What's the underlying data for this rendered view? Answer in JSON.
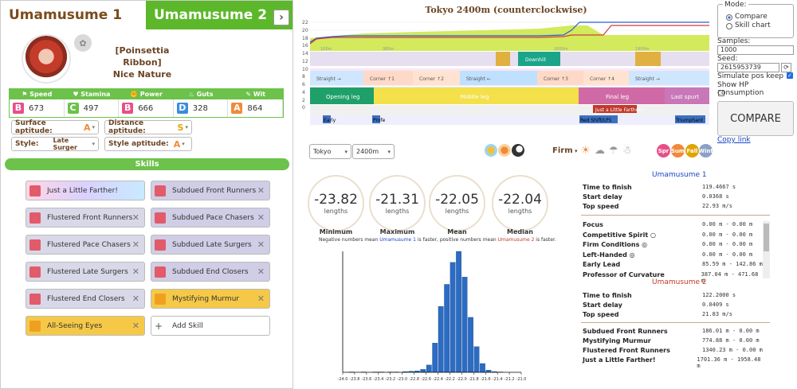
{
  "tabs": {
    "uma1": "Umamusume 1",
    "uma2": "Umamusume 2",
    "next": "›"
  },
  "uma": {
    "outfit": "[Poinsettia Ribbon]",
    "name": "Nice Nature"
  },
  "stats": [
    {
      "label": "Speed",
      "grade": "B",
      "value": "673"
    },
    {
      "label": "Stamina",
      "grade": "C",
      "value": "497"
    },
    {
      "label": "Power",
      "grade": "B",
      "value": "666"
    },
    {
      "label": "Guts",
      "grade": "D",
      "value": "328"
    },
    {
      "label": "Wit",
      "grade": "A",
      "value": "864"
    }
  ],
  "aptitudes": {
    "surface": {
      "label": "Surface aptitude:",
      "grade": "A"
    },
    "distance": {
      "label": "Distance aptitude:",
      "grade": "S"
    },
    "style": {
      "label": "Style:",
      "value": "Late Surger"
    },
    "style_apt": {
      "label": "Style aptitude:",
      "grade": "A"
    }
  },
  "skills_header": "Skills",
  "skills": [
    "Just a Little Farther!",
    "Subdued Front Runners",
    "Flustered Front Runners",
    "Subdued Pace Chasers",
    "Flustered Pace Chasers",
    "Subdued Late Surgers",
    "Flustered Late Surgers",
    "Subdued End Closers",
    "Flustered End Closers",
    "Mystifying Murmur",
    "All-Seeing Eyes",
    "Add Skill"
  ],
  "controls": {
    "mode_title": "Mode:",
    "mode_compare": "Compare",
    "mode_skill": "Skill chart",
    "samples_label": "Samples:",
    "samples_value": "1000",
    "seed_label": "Seed:",
    "seed_value": "2615953739",
    "sim_pos": "Simulate pos keep",
    "show_hp": "Show HP consumption",
    "compare_btn": "COMPARE",
    "copy_link": "Copy link"
  },
  "course": {
    "title": "Tokyo 2400m (counterclockwise)",
    "y_ticks": [
      "22",
      "20",
      "18",
      "16",
      "14",
      "12",
      "10",
      "8",
      "6",
      "4",
      "2",
      "0"
    ],
    "x_ticks": [
      "0",
      "200",
      "400",
      "600",
      "800",
      "1,000",
      "1,200",
      "1,400",
      "1,600",
      "1,800",
      "2,000",
      "2,200",
      "2,4"
    ],
    "straight_corner": [
      "Straight →",
      "Corner ↑1",
      "Corner ↑2",
      "Straight ←",
      "Corner ↑3",
      "Corner ↑4",
      "Straight →"
    ],
    "phases": [
      "Opening leg",
      "Middle leg",
      "Final leg",
      "Last spurt"
    ],
    "skill_marks": [
      "Just a Little Farther!",
      "Downhill"
    ],
    "track_labels": [
      "Early",
      "Profe",
      "Red Shift/LP1",
      "Triumphant"
    ],
    "dist_marks": [
      "100m",
      "380m",
      "1600m",
      "1900m"
    ]
  },
  "selectors": {
    "track": "Tokyo",
    "distance": "2400m",
    "ground": "Firm"
  },
  "seasons": [
    "Spr",
    "Sum",
    "Fall",
    "Wint"
  ],
  "stats_summary": {
    "min": {
      "value": "-23.82",
      "unit": "lengths",
      "label": "Minimum"
    },
    "max": {
      "value": "-21.31",
      "unit": "lengths",
      "label": "Maximum"
    },
    "mean": {
      "value": "-22.05",
      "unit": "lengths",
      "label": "Mean"
    },
    "median": {
      "value": "-22.04",
      "unit": "lengths",
      "label": "Median"
    }
  },
  "note": {
    "a": "Negative numbers mean ",
    "u1": "Umamusume 1",
    "b": " is faster, positive numbers mean ",
    "u2": "Umamusume 2",
    "c": " is faster."
  },
  "chart_data": {
    "type": "bar",
    "categories": [
      "-24.0",
      "-23.8",
      "-23.6",
      "-23.4",
      "-23.2",
      "-23.0",
      "-22.8",
      "-22.6",
      "-22.4",
      "-22.2",
      "-22.0",
      "-21.8",
      "-21.6",
      "-21.4",
      "-21.2",
      "-21.0"
    ],
    "x": [
      -23.85,
      -23.65,
      -23.45,
      -23.35,
      -23.2,
      -23.1,
      -22.95,
      -22.85,
      -22.75,
      -22.65,
      -22.55,
      -22.45,
      -22.35,
      -22.25,
      -22.15,
      -22.05,
      -21.95,
      -21.85,
      -21.75,
      -21.65,
      -21.55,
      -21.45,
      -21.35
    ],
    "values": [
      0.5,
      0.5,
      0.5,
      0.5,
      0.5,
      0.5,
      1,
      1.5,
      2,
      4,
      10,
      40,
      90,
      120,
      150,
      165,
      130,
      75,
      35,
      12,
      3,
      1,
      0.5
    ],
    "xlim": [
      -24.0,
      -21.0
    ]
  },
  "results": {
    "u1_title": "Umamusume 1",
    "u1_rows": [
      {
        "k": "Time to finish",
        "v": "119.4667 s"
      },
      {
        "k": "Start delay",
        "v": "0.0368 s"
      },
      {
        "k": "Top speed",
        "v": "22.93 m/s"
      }
    ],
    "u1_skills": [
      {
        "k": "Focus",
        "v": "0.00 m - 0.00 m"
      },
      {
        "k": "Competitive Spirit ○",
        "v": "0.00 m - 0.00 m"
      },
      {
        "k": "Firm Conditions ◎",
        "v": "0.00 m - 0.00 m"
      },
      {
        "k": "Left-Handed ◎",
        "v": "0.00 m - 0.00 m"
      },
      {
        "k": "Early Lead",
        "v": "85.59 m - 142.86 m"
      },
      {
        "k": "Professor of Curvature",
        "v": "387.04 m - 471.68 m"
      }
    ],
    "u2_title": "Umamusume 2",
    "u2_rows": [
      {
        "k": "Time to finish",
        "v": "122.2000 s"
      },
      {
        "k": "Start delay",
        "v": "0.0409 s"
      },
      {
        "k": "Top speed",
        "v": "21.83 m/s"
      }
    ],
    "u2_skills": [
      {
        "k": "Subdued Front Runners",
        "v": "186.01 m - 0.00 m"
      },
      {
        "k": "Mystifying Murmur",
        "v": "774.88 m - 0.00 m"
      },
      {
        "k": "Flustered Front Runners",
        "v": "1340.23 m - 0.00 m"
      },
      {
        "k": "Just a Little Farther!",
        "v": "1701.36 m - 1958.48 m"
      }
    ]
  }
}
